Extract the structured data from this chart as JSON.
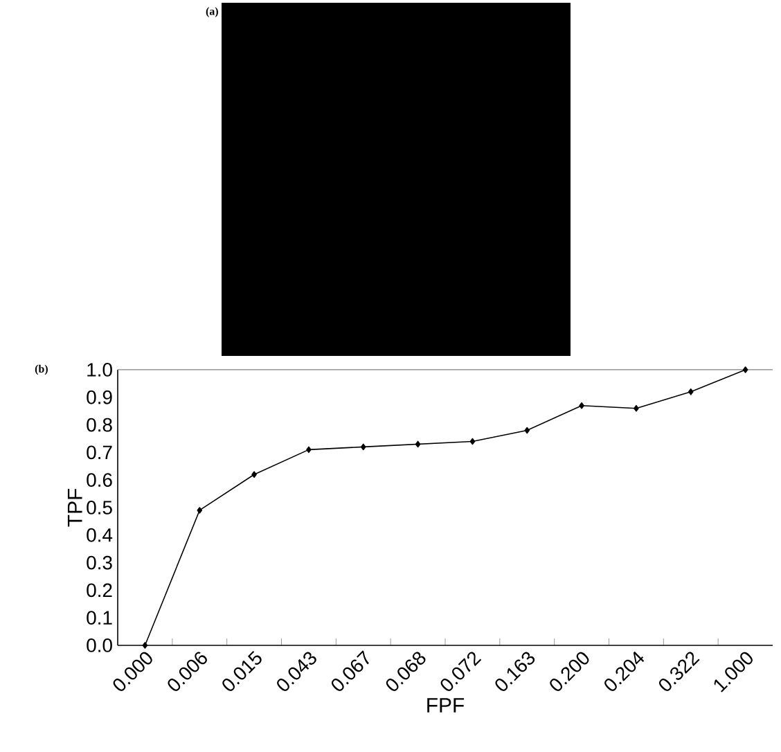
{
  "chart_data": {
    "type": "line",
    "categories": [
      "0.000",
      "0.006",
      "0.015",
      "0.043",
      "0.067",
      "0.068",
      "0.072",
      "0.163",
      "0.200",
      "0.204",
      "0.322",
      "1.000"
    ],
    "values": [
      0.0,
      0.49,
      0.62,
      0.71,
      0.72,
      0.73,
      0.74,
      0.78,
      0.87,
      0.86,
      0.92,
      1.0
    ],
    "color": "#000000",
    "marker": "diamond",
    "line_style": "solid",
    "xlabel": "FPF",
    "ylabel": "TPF",
    "ylim": [
      0,
      1
    ],
    "yticks": [
      {
        "value": 0,
        "label": "0.0"
      },
      0.1,
      0.2,
      0.3,
      0.4,
      0.5,
      0.6,
      0.7,
      0.8,
      0.9,
      {
        "value": 1,
        "label": "1.0"
      }
    ],
    "annotations": [
      "(a)",
      "(b)"
    ]
  }
}
